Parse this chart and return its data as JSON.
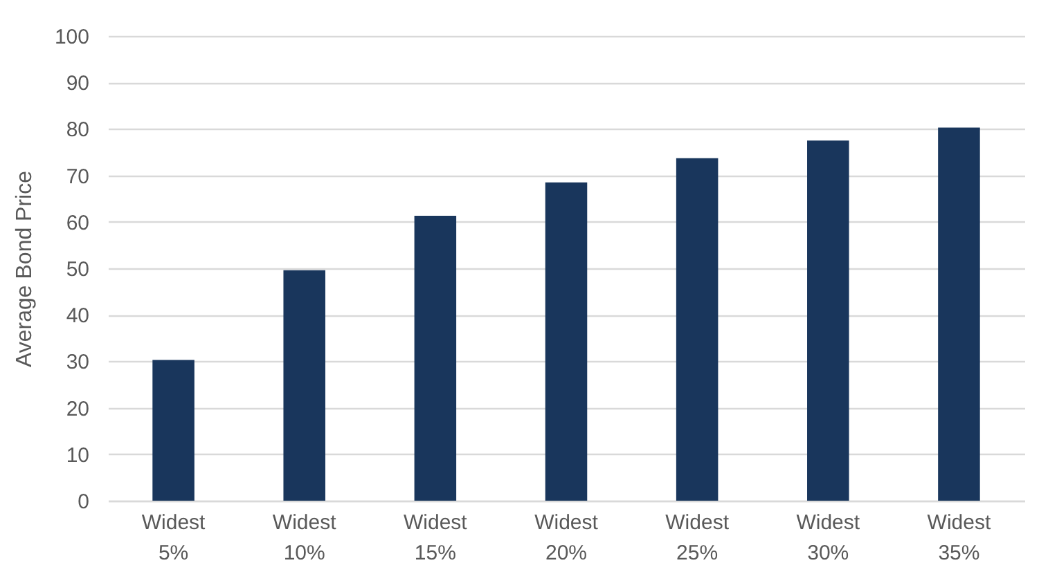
{
  "chart_data": {
    "type": "bar",
    "ylabel": "Average Bond Price",
    "categories": [
      "Widest 5%",
      "Widest 10%",
      "Widest 15%",
      "Widest 20%",
      "Widest 25%",
      "Widest 30%",
      "Widest 35%"
    ],
    "values": [
      30.3,
      49.6,
      61.3,
      68.5,
      73.7,
      77.5,
      80.3
    ],
    "color": "#19365c",
    "ylim": [
      0,
      100
    ],
    "yticks": [
      0,
      10,
      20,
      30,
      40,
      50,
      60,
      70,
      80,
      90,
      100
    ],
    "grid": true
  }
}
